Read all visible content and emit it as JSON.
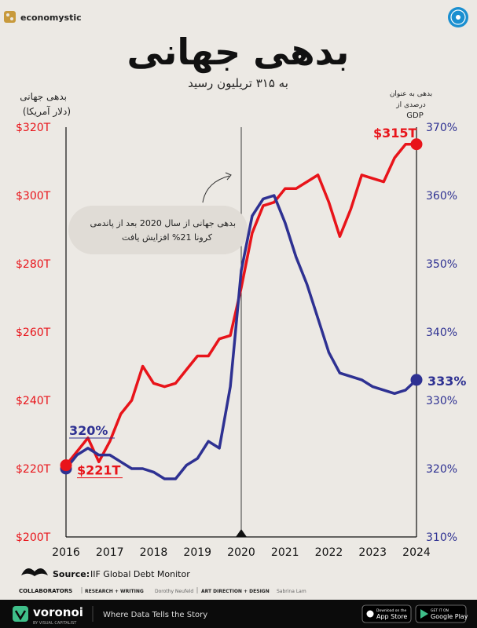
{
  "header": {
    "brand": "economystic",
    "title": "بدهی جهانی",
    "subtitle": "به ۳۱۵ تریلیون رسید",
    "left_axis_title_line1": "بدهی جهانی",
    "left_axis_title_line2": "(دلار آمریکا)",
    "right_axis_title_line1": "بدهی به عنوان",
    "right_axis_title_line2": "درصدی از",
    "right_axis_title_line3": "GDP"
  },
  "annotation": {
    "line1": "بدهی جهانی از سال 2020 بعد از پاندمی",
    "line2": "کرونا 21% افزایش یافت"
  },
  "chart_data": {
    "type": "line",
    "x_ticks": [
      "2016",
      "2017",
      "2018",
      "2019",
      "2020",
      "2021",
      "2022",
      "2023",
      "2024"
    ],
    "y_left": {
      "ticks": [
        "$200T",
        "$220T",
        "$240T",
        "$260T",
        "$280T",
        "$300T",
        "$320T"
      ],
      "range": [
        200,
        320
      ],
      "color": "#e8141a"
    },
    "y_right": {
      "ticks": [
        "310%",
        "320%",
        "330%",
        "340%",
        "350%",
        "360%",
        "370%"
      ],
      "range": [
        310,
        370
      ],
      "color": "#2e3192"
    },
    "series": [
      {
        "axis": "left",
        "color": "#e8141a",
        "x": [
          2016.0,
          2016.25,
          2016.5,
          2016.75,
          2017.0,
          2017.25,
          2017.5,
          2017.75,
          2018.0,
          2018.25,
          2018.5,
          2018.75,
          2019.0,
          2019.25,
          2019.5,
          2019.75,
          2020.0,
          2020.25,
          2020.5,
          2020.75,
          2021.0,
          2021.25,
          2021.5,
          2021.75,
          2022.0,
          2022.25,
          2022.5,
          2022.75,
          2023.0,
          2023.25,
          2023.5,
          2023.75,
          2024.0
        ],
        "values": [
          221,
          225,
          229,
          222,
          228,
          236,
          240,
          250,
          245,
          244,
          245,
          249,
          253,
          253,
          258,
          259,
          273,
          289,
          297,
          298,
          302,
          302,
          304,
          306,
          298,
          288,
          296,
          306,
          305,
          304,
          311,
          315,
          315
        ]
      },
      {
        "axis": "right",
        "color": "#2e3192",
        "x": [
          2016.0,
          2016.25,
          2016.5,
          2016.75,
          2017.0,
          2017.25,
          2017.5,
          2017.75,
          2018.0,
          2018.25,
          2018.5,
          2018.75,
          2019.0,
          2019.25,
          2019.5,
          2019.75,
          2020.0,
          2020.25,
          2020.5,
          2020.75,
          2021.0,
          2021.25,
          2021.5,
          2021.75,
          2022.0,
          2022.25,
          2022.5,
          2022.75,
          2023.0,
          2023.25,
          2023.5,
          2023.75,
          2024.0
        ],
        "values": [
          320,
          322,
          323,
          322,
          322,
          321,
          320,
          320,
          319.5,
          318.5,
          318.5,
          320.5,
          321.5,
          324,
          323,
          332,
          349,
          357,
          359.5,
          360,
          356,
          351,
          347,
          342,
          337,
          334,
          333.5,
          333,
          332,
          331.5,
          331,
          331.5,
          333
        ]
      }
    ],
    "labels": [
      {
        "text": "$315T",
        "axis": "left",
        "x": 2024,
        "y": 315,
        "color": "#e8141a"
      },
      {
        "text": "$221T",
        "axis": "left",
        "x": 2016,
        "y": 221,
        "color": "#e8141a"
      },
      {
        "text": "320%",
        "axis": "right",
        "x": 2016,
        "y": 320,
        "color": "#2e3192"
      },
      {
        "text": "333%",
        "axis": "right",
        "x": 2024,
        "y": 333,
        "color": "#2e3192"
      }
    ],
    "marker_x": 2020
  },
  "source": {
    "label": "Source:",
    "text": "IIF Global Debt Monitor"
  },
  "collaborators": {
    "label": "COLLABORATORS",
    "research_label": "RESEARCH + WRITING",
    "research_name": "Dorothy Neufeld",
    "art_label": "ART DIRECTION + DESIGN",
    "art_name": "Sabrina Lam"
  },
  "footer": {
    "brand": "voronoi",
    "brand_sub": "BY VISUAL CAPITALIST",
    "tagline": "Where Data Tells the Story",
    "appstore_small": "Download on the",
    "appstore": "App Store",
    "googleplay_small": "GET IT ON",
    "googleplay": "Google Play"
  },
  "colors": {
    "background": "#ece9e4",
    "red": "#e8141a",
    "blue": "#2e3192",
    "footer_bg": "#0b0b0b",
    "voronoi_green": "#3fbf8a"
  },
  "icons": [
    "economystic-logo-icon",
    "emblem-icon",
    "arrow-icon",
    "mustache-logo-icon",
    "voronoi-logo-icon",
    "apple-icon",
    "google-play-icon"
  ]
}
